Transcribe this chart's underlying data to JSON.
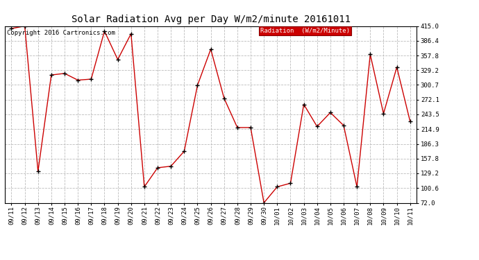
{
  "title": "Solar Radiation Avg per Day W/m2/minute 20161011",
  "copyright": "Copyright 2016 Cartronics.com",
  "legend_label": "Radiation  (W/m2/Minute)",
  "x_labels": [
    "09/11",
    "09/12",
    "09/13",
    "09/14",
    "09/15",
    "09/16",
    "09/17",
    "09/18",
    "09/19",
    "09/20",
    "09/21",
    "09/22",
    "09/23",
    "09/24",
    "09/25",
    "09/26",
    "09/27",
    "09/28",
    "09/29",
    "09/30",
    "10/01",
    "10/02",
    "10/03",
    "10/04",
    "10/05",
    "10/06",
    "10/07",
    "10/08",
    "10/09",
    "10/10",
    "10/11"
  ],
  "y_values": [
    410,
    415,
    133,
    320,
    323,
    310,
    312,
    405,
    350,
    400,
    103,
    140,
    143,
    172,
    300,
    370,
    275,
    218,
    218,
    72,
    103,
    110,
    263,
    220,
    247,
    222,
    103,
    360,
    245,
    335,
    230
  ],
  "y_ticks": [
    72.0,
    100.6,
    129.2,
    157.8,
    186.3,
    214.9,
    243.5,
    272.1,
    300.7,
    329.2,
    357.8,
    386.4,
    415.0
  ],
  "line_color": "#cc0000",
  "marker_color": "#000000",
  "bg_color": "#ffffff",
  "grid_color": "#bbbbbb",
  "legend_bg": "#cc0000",
  "legend_text_color": "#ffffff",
  "title_fontsize": 10,
  "axis_fontsize": 6.5,
  "copyright_fontsize": 6.5
}
